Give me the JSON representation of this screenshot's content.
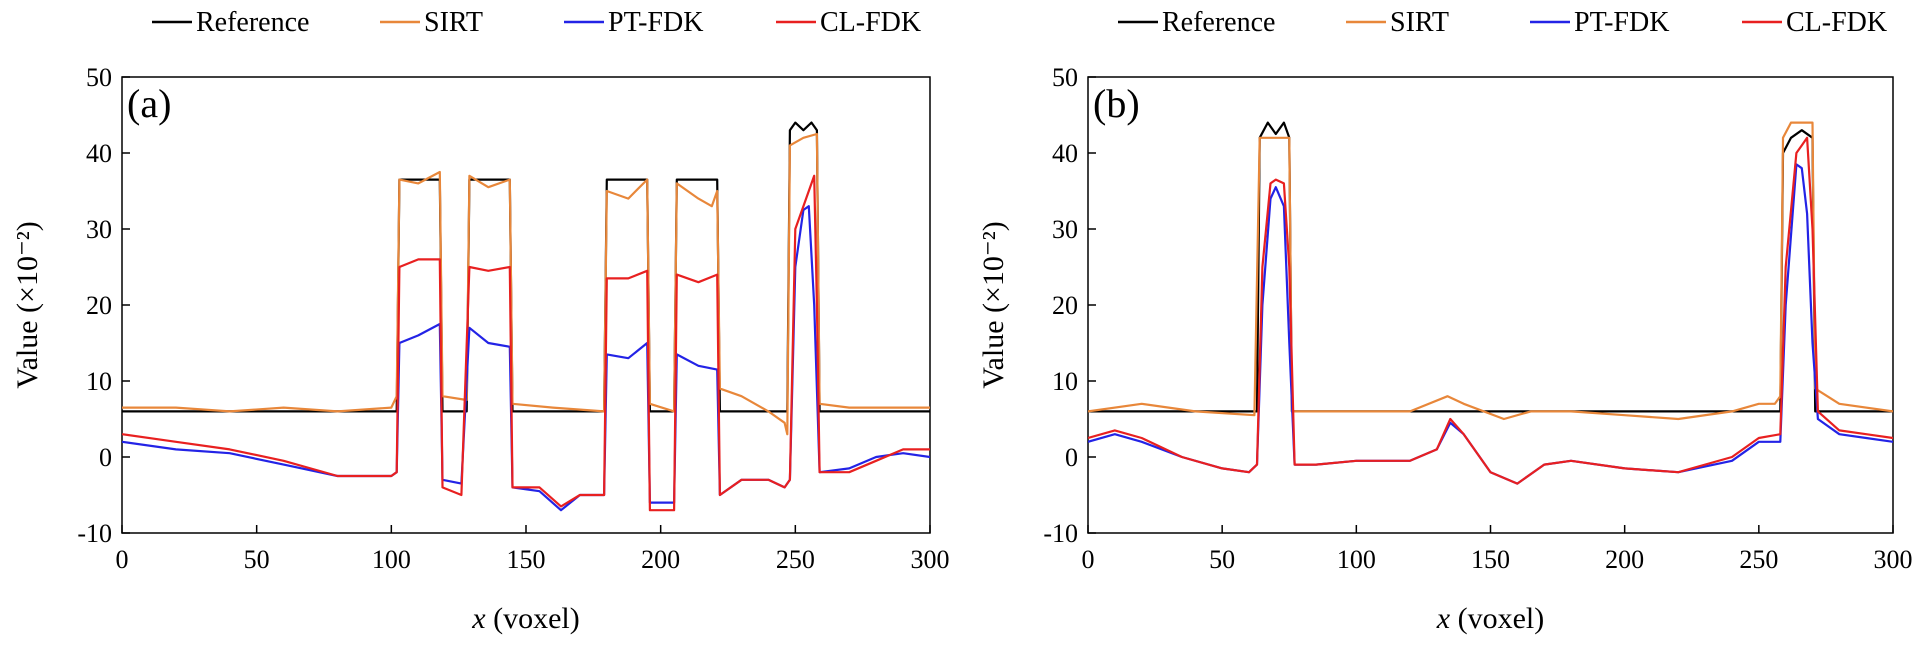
{
  "colors": {
    "Reference": "#000000",
    "SIRT": "#e8873a",
    "PT-FDK": "#2323e6",
    "CL-FDK": "#e82020"
  },
  "chart_data": [
    {
      "type": "line",
      "panel": "(a)",
      "xlabel_italic": "x",
      "xlabel_rest": " (voxel)",
      "ylabel": "Value (×10⁻²)",
      "xlim": [
        0,
        300
      ],
      "ylim": [
        -10,
        50
      ],
      "xticks": [
        0,
        50,
        100,
        150,
        200,
        250,
        300
      ],
      "yticks": [
        -10,
        0,
        10,
        20,
        30,
        40,
        50
      ],
      "legend": [
        "Reference",
        "SIRT",
        "PT-FDK",
        "CL-FDK"
      ],
      "legend_position": "top",
      "grid": false,
      "series": [
        {
          "name": "Reference",
          "points": [
            [
              0,
              6
            ],
            [
              102,
              6
            ],
            [
              103,
              36.5
            ],
            [
              118,
              36.5
            ],
            [
              119,
              6
            ],
            [
              128,
              6
            ],
            [
              129,
              36.5
            ],
            [
              144,
              36.5
            ],
            [
              145,
              6
            ],
            [
              179,
              6
            ],
            [
              180,
              36.5
            ],
            [
              195,
              36.5
            ],
            [
              196,
              6
            ],
            [
              205,
              6
            ],
            [
              206,
              36.5
            ],
            [
              221,
              36.5
            ],
            [
              222,
              6
            ],
            [
              247,
              6
            ],
            [
              248,
              43
            ],
            [
              250,
              44
            ],
            [
              253,
              43
            ],
            [
              256,
              44
            ],
            [
              258,
              43
            ],
            [
              259,
              6
            ],
            [
              300,
              6
            ]
          ]
        },
        {
          "name": "SIRT",
          "points": [
            [
              0,
              6.5
            ],
            [
              20,
              6.5
            ],
            [
              40,
              6
            ],
            [
              60,
              6.5
            ],
            [
              80,
              6
            ],
            [
              100,
              6.5
            ],
            [
              102,
              8
            ],
            [
              103,
              36.5
            ],
            [
              110,
              36
            ],
            [
              118,
              37.5
            ],
            [
              119,
              8
            ],
            [
              128,
              7.5
            ],
            [
              129,
              37
            ],
            [
              136,
              35.5
            ],
            [
              144,
              36.5
            ],
            [
              145,
              7
            ],
            [
              160,
              6.5
            ],
            [
              179,
              6
            ],
            [
              180,
              35
            ],
            [
              188,
              34
            ],
            [
              195,
              36.5
            ],
            [
              196,
              7
            ],
            [
              205,
              6
            ],
            [
              206,
              36
            ],
            [
              214,
              34
            ],
            [
              219,
              33
            ],
            [
              221,
              35
            ],
            [
              222,
              9
            ],
            [
              230,
              8
            ],
            [
              240,
              6
            ],
            [
              246,
              4.5
            ],
            [
              247,
              3
            ],
            [
              248,
              41
            ],
            [
              253,
              42
            ],
            [
              258,
              42.5
            ],
            [
              259,
              7
            ],
            [
              270,
              6.5
            ],
            [
              300,
              6.5
            ]
          ]
        },
        {
          "name": "PT-FDK",
          "points": [
            [
              0,
              2
            ],
            [
              20,
              1
            ],
            [
              40,
              0.5
            ],
            [
              60,
              -1
            ],
            [
              80,
              -2.5
            ],
            [
              100,
              -2.5
            ],
            [
              102,
              -2
            ],
            [
              103,
              15
            ],
            [
              110,
              16
            ],
            [
              118,
              17.5
            ],
            [
              119,
              -3
            ],
            [
              126,
              -3.5
            ],
            [
              129,
              17
            ],
            [
              136,
              15
            ],
            [
              144,
              14.5
            ],
            [
              145,
              -4
            ],
            [
              155,
              -4.5
            ],
            [
              163,
              -7
            ],
            [
              170,
              -5
            ],
            [
              179,
              -5
            ],
            [
              180,
              13.5
            ],
            [
              188,
              13
            ],
            [
              195,
              15
            ],
            [
              196,
              -6
            ],
            [
              205,
              -6
            ],
            [
              206,
              13.5
            ],
            [
              214,
              12
            ],
            [
              221,
              11.5
            ],
            [
              222,
              -5
            ],
            [
              230,
              -3
            ],
            [
              240,
              -3
            ],
            [
              246,
              -4
            ],
            [
              248,
              -3
            ],
            [
              250,
              25
            ],
            [
              253,
              32.5
            ],
            [
              255,
              33
            ],
            [
              257,
              20
            ],
            [
              259,
              -2
            ],
            [
              270,
              -1.5
            ],
            [
              280,
              0
            ],
            [
              290,
              0.5
            ],
            [
              300,
              0
            ]
          ]
        },
        {
          "name": "CL-FDK",
          "points": [
            [
              0,
              3
            ],
            [
              20,
              2
            ],
            [
              40,
              1
            ],
            [
              60,
              -0.5
            ],
            [
              80,
              -2.5
            ],
            [
              100,
              -2.5
            ],
            [
              102,
              -2
            ],
            [
              103,
              25
            ],
            [
              110,
              26
            ],
            [
              118,
              26
            ],
            [
              119,
              -4
            ],
            [
              126,
              -5
            ],
            [
              129,
              25
            ],
            [
              136,
              24.5
            ],
            [
              144,
              25
            ],
            [
              145,
              -4
            ],
            [
              155,
              -4
            ],
            [
              163,
              -6.5
            ],
            [
              170,
              -5
            ],
            [
              179,
              -5
            ],
            [
              180,
              23.5
            ],
            [
              188,
              23.5
            ],
            [
              195,
              24.5
            ],
            [
              196,
              -7
            ],
            [
              205,
              -7
            ],
            [
              206,
              24
            ],
            [
              214,
              23
            ],
            [
              221,
              24
            ],
            [
              222,
              -5
            ],
            [
              230,
              -3
            ],
            [
              240,
              -3
            ],
            [
              246,
              -4
            ],
            [
              248,
              -3
            ],
            [
              250,
              30
            ],
            [
              253,
              33
            ],
            [
              256,
              36
            ],
            [
              257,
              37
            ],
            [
              258,
              20
            ],
            [
              259,
              -2
            ],
            [
              270,
              -2
            ],
            [
              280,
              -0.5
            ],
            [
              290,
              1
            ],
            [
              300,
              1
            ]
          ]
        }
      ]
    },
    {
      "type": "line",
      "panel": "(b)",
      "xlabel_italic": "x",
      "xlabel_rest": " (voxel)",
      "ylabel": "Value (×10⁻²)",
      "xlim": [
        0,
        300
      ],
      "ylim": [
        -10,
        50
      ],
      "xticks": [
        0,
        50,
        100,
        150,
        200,
        250,
        300
      ],
      "yticks": [
        -10,
        0,
        10,
        20,
        30,
        40,
        50
      ],
      "legend": [
        "Reference",
        "SIRT",
        "PT-FDK",
        "CL-FDK"
      ],
      "legend_position": "top",
      "grid": false,
      "series": [
        {
          "name": "Reference",
          "points": [
            [
              0,
              6
            ],
            [
              63,
              6
            ],
            [
              64,
              42
            ],
            [
              67,
              44
            ],
            [
              70,
              42.5
            ],
            [
              73,
              44
            ],
            [
              75,
              42
            ],
            [
              76,
              6
            ],
            [
              258,
              6
            ],
            [
              259,
              40
            ],
            [
              262,
              42
            ],
            [
              266,
              43
            ],
            [
              270,
              42
            ],
            [
              271,
              6
            ],
            [
              300,
              6
            ]
          ]
        },
        {
          "name": "SIRT",
          "points": [
            [
              0,
              6
            ],
            [
              20,
              7
            ],
            [
              40,
              6
            ],
            [
              62,
              5.5
            ],
            [
              64,
              42
            ],
            [
              70,
              42
            ],
            [
              75,
              42
            ],
            [
              76,
              6
            ],
            [
              100,
              6
            ],
            [
              120,
              6
            ],
            [
              134,
              8
            ],
            [
              140,
              7
            ],
            [
              155,
              5
            ],
            [
              165,
              6
            ],
            [
              180,
              6
            ],
            [
              200,
              5.5
            ],
            [
              220,
              5
            ],
            [
              240,
              6
            ],
            [
              250,
              7
            ],
            [
              256,
              7
            ],
            [
              258,
              8
            ],
            [
              259,
              42
            ],
            [
              262,
              44
            ],
            [
              266,
              44
            ],
            [
              270,
              44
            ],
            [
              271,
              9
            ],
            [
              280,
              7
            ],
            [
              300,
              6
            ]
          ]
        },
        {
          "name": "PT-FDK",
          "points": [
            [
              0,
              2
            ],
            [
              10,
              3
            ],
            [
              20,
              2
            ],
            [
              35,
              0
            ],
            [
              50,
              -1.5
            ],
            [
              60,
              -2
            ],
            [
              63,
              -1
            ],
            [
              65,
              20
            ],
            [
              68,
              34
            ],
            [
              70,
              35.5
            ],
            [
              73,
              33
            ],
            [
              75,
              15
            ],
            [
              77,
              -1
            ],
            [
              85,
              -1
            ],
            [
              100,
              -0.5
            ],
            [
              120,
              -0.5
            ],
            [
              130,
              1
            ],
            [
              135,
              4.5
            ],
            [
              140,
              3
            ],
            [
              150,
              -2
            ],
            [
              160,
              -3.5
            ],
            [
              170,
              -1
            ],
            [
              180,
              -0.5
            ],
            [
              200,
              -1.5
            ],
            [
              220,
              -2
            ],
            [
              240,
              -0.5
            ],
            [
              250,
              2
            ],
            [
              258,
              2
            ],
            [
              260,
              20
            ],
            [
              264,
              38.5
            ],
            [
              266,
              38
            ],
            [
              268,
              32
            ],
            [
              270,
              15
            ],
            [
              272,
              5
            ],
            [
              280,
              3
            ],
            [
              290,
              2.5
            ],
            [
              300,
              2
            ]
          ]
        },
        {
          "name": "CL-FDK",
          "points": [
            [
              0,
              2.5
            ],
            [
              10,
              3.5
            ],
            [
              20,
              2.5
            ],
            [
              35,
              0
            ],
            [
              50,
              -1.5
            ],
            [
              60,
              -2
            ],
            [
              63,
              -1
            ],
            [
              65,
              25
            ],
            [
              68,
              36
            ],
            [
              70,
              36.5
            ],
            [
              73,
              36
            ],
            [
              75,
              25
            ],
            [
              77,
              -1
            ],
            [
              85,
              -1
            ],
            [
              100,
              -0.5
            ],
            [
              120,
              -0.5
            ],
            [
              130,
              1
            ],
            [
              135,
              5
            ],
            [
              140,
              3
            ],
            [
              150,
              -2
            ],
            [
              160,
              -3.5
            ],
            [
              170,
              -1
            ],
            [
              180,
              -0.5
            ],
            [
              200,
              -1.5
            ],
            [
              220,
              -2
            ],
            [
              240,
              0
            ],
            [
              250,
              2.5
            ],
            [
              258,
              3
            ],
            [
              260,
              25
            ],
            [
              264,
              40
            ],
            [
              266,
              41
            ],
            [
              268,
              42
            ],
            [
              270,
              30
            ],
            [
              272,
              6
            ],
            [
              280,
              3.5
            ],
            [
              290,
              3
            ],
            [
              300,
              2.5
            ]
          ]
        }
      ]
    }
  ]
}
